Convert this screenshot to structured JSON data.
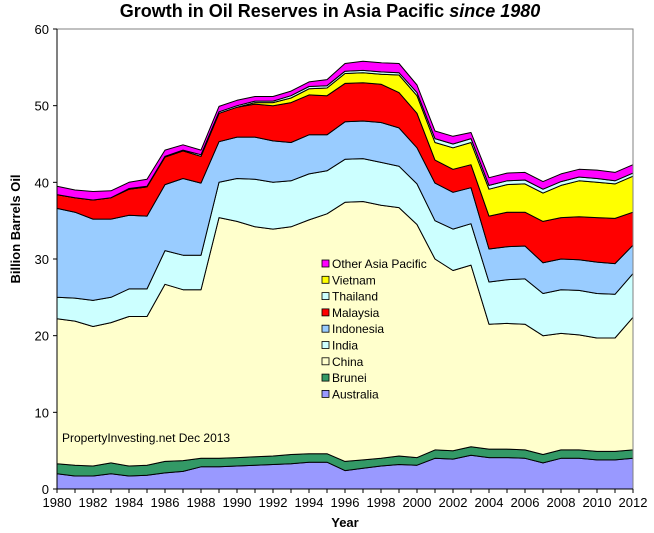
{
  "chart_data": {
    "type": "area",
    "stacked": true,
    "title_main": "Growth in Oil Reserves  in Asia Pacific ",
    "title_italic": "since 1980",
    "xlabel": "Year",
    "ylabel": "Billion Barrels Oil",
    "ylim": [
      0,
      60
    ],
    "y_ticks": [
      "0",
      "10",
      "20",
      "30",
      "40",
      "50",
      "60"
    ],
    "xlim": [
      1980,
      2012
    ],
    "x_ticks": [
      "1980",
      "1982",
      "1984",
      "1986",
      "1988",
      "1990",
      "1992",
      "1994",
      "1996",
      "1998",
      "2000",
      "2002",
      "2004",
      "2006",
      "2008",
      "2010",
      "2012"
    ],
    "legend_position": "center",
    "annotation": "PropertyInvesting.net  Dec 2013",
    "background": "#ffffff",
    "plot_border": "#808080",
    "x": [
      1980,
      1981,
      1982,
      1983,
      1984,
      1985,
      1986,
      1987,
      1988,
      1989,
      1990,
      1991,
      1992,
      1993,
      1994,
      1995,
      1996,
      1997,
      1998,
      1999,
      2000,
      2001,
      2002,
      2003,
      2004,
      2005,
      2006,
      2007,
      2008,
      2009,
      2010,
      2011,
      2012
    ],
    "series": [
      {
        "name": "Australia",
        "color": "#9999ff",
        "values": [
          2.0,
          1.7,
          1.7,
          2.0,
          1.7,
          1.8,
          2.1,
          2.3,
          2.9,
          2.9,
          3.0,
          3.1,
          3.2,
          3.3,
          3.5,
          3.5,
          2.4,
          2.7,
          3.0,
          3.2,
          3.1,
          4.0,
          3.9,
          4.4,
          4.1,
          4.1,
          4.0,
          3.4,
          4.0,
          4.0,
          3.8,
          3.8,
          4.0
        ]
      },
      {
        "name": "Brunei",
        "color": "#339966",
        "values": [
          1.3,
          1.4,
          1.3,
          1.4,
          1.3,
          1.3,
          1.5,
          1.4,
          1.1,
          1.1,
          1.1,
          1.1,
          1.1,
          1.2,
          1.1,
          1.1,
          1.2,
          1.1,
          1.0,
          1.1,
          1.0,
          1.1,
          1.1,
          1.1,
          1.1,
          1.1,
          1.1,
          1.1,
          1.1,
          1.1,
          1.1,
          1.1,
          1.1
        ]
      },
      {
        "name": "China",
        "color": "#ffffcc",
        "values": [
          18.9,
          18.8,
          18.2,
          18.3,
          19.5,
          19.4,
          23.1,
          22.3,
          22.0,
          31.4,
          30.8,
          30.0,
          29.6,
          29.7,
          30.5,
          31.3,
          33.8,
          33.7,
          33.0,
          32.4,
          30.4,
          24.9,
          23.5,
          23.7,
          16.3,
          16.4,
          16.4,
          15.5,
          15.2,
          15.0,
          14.8,
          14.8,
          17.3
        ]
      },
      {
        "name": "India",
        "color": "#ccffff",
        "values": [
          2.8,
          3.0,
          3.4,
          3.3,
          3.6,
          3.6,
          4.4,
          4.5,
          4.5,
          4.6,
          5.6,
          6.2,
          6.1,
          6.0,
          6.0,
          5.6,
          5.6,
          5.6,
          5.6,
          5.4,
          5.3,
          5.0,
          5.4,
          5.4,
          5.5,
          5.7,
          5.9,
          5.5,
          5.7,
          5.8,
          5.8,
          5.7,
          5.7
        ]
      },
      {
        "name": "Indonesia",
        "color": "#99ccff",
        "values": [
          11.6,
          11.2,
          10.6,
          10.2,
          9.6,
          9.5,
          8.6,
          10.0,
          9.4,
          5.3,
          5.4,
          5.5,
          5.4,
          5.0,
          5.1,
          4.7,
          4.9,
          4.9,
          5.2,
          5.0,
          4.7,
          4.9,
          4.8,
          4.7,
          4.3,
          4.3,
          4.3,
          4.0,
          4.0,
          4.0,
          4.1,
          4.0,
          3.7
        ]
      },
      {
        "name": "Malaysia",
        "color": "#ff0000",
        "values": [
          1.8,
          1.9,
          2.5,
          2.8,
          3.4,
          3.8,
          3.6,
          3.6,
          3.5,
          3.7,
          3.9,
          4.3,
          4.6,
          5.2,
          5.2,
          5.1,
          5.0,
          5.0,
          5.0,
          4.6,
          4.5,
          3.0,
          3.0,
          3.0,
          4.3,
          4.5,
          4.4,
          5.4,
          5.4,
          5.6,
          5.8,
          5.9,
          4.3
        ]
      },
      {
        "name": "Vietnam",
        "color": "#ffff00",
        "values": [
          0.0,
          0.0,
          0.0,
          0.0,
          0.0,
          0.0,
          0.0,
          0.0,
          0.0,
          0.0,
          0.0,
          0.2,
          0.4,
          0.6,
          0.8,
          1.0,
          1.3,
          1.3,
          1.3,
          2.3,
          2.3,
          2.3,
          2.8,
          2.9,
          3.5,
          3.6,
          3.7,
          3.7,
          4.2,
          4.7,
          4.6,
          4.5,
          4.7
        ]
      },
      {
        "name": "Thailand",
        "color": "#ccffff",
        "values": [
          0.0,
          0.0,
          0.0,
          0.0,
          0.1,
          0.1,
          0.1,
          0.1,
          0.2,
          0.2,
          0.2,
          0.2,
          0.2,
          0.3,
          0.3,
          0.3,
          0.3,
          0.3,
          0.3,
          0.3,
          0.4,
          0.5,
          0.5,
          0.5,
          0.5,
          0.5,
          0.5,
          0.5,
          0.5,
          0.5,
          0.5,
          0.4,
          0.4
        ]
      },
      {
        "name": "Other Asia Pacific",
        "color": "#ff00ff",
        "values": [
          1.1,
          1.0,
          1.1,
          0.9,
          0.8,
          0.9,
          0.8,
          0.7,
          0.6,
          0.7,
          0.7,
          0.6,
          0.6,
          0.6,
          0.6,
          0.8,
          1.0,
          1.2,
          1.2,
          1.2,
          1.0,
          1.0,
          1.0,
          0.8,
          1.0,
          1.0,
          1.0,
          1.0,
          1.0,
          1.0,
          1.1,
          1.1,
          1.1
        ]
      }
    ],
    "legend_order": [
      "Other Asia Pacific",
      "Vietnam",
      "Thailand",
      "Malaysia",
      "Indonesia",
      "India",
      "China",
      "Brunei",
      "Australia"
    ]
  }
}
